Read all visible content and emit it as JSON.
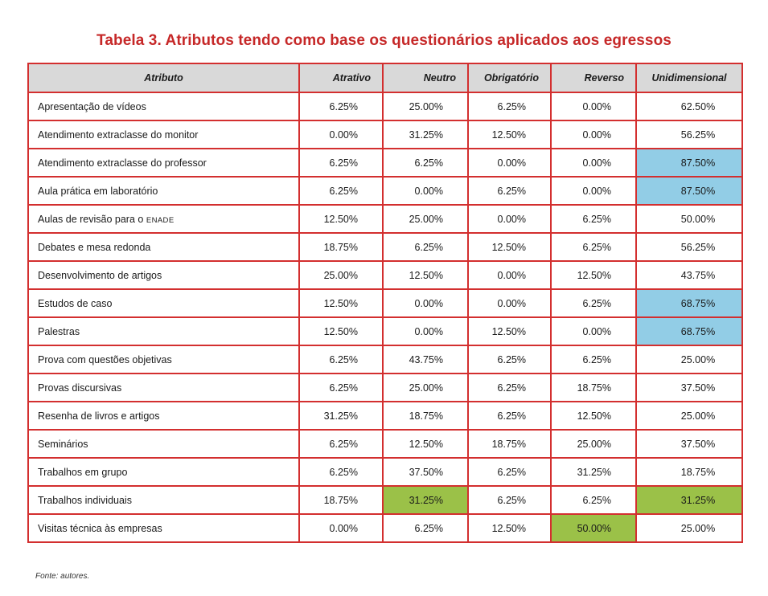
{
  "title": "Tabela 3. Atributos tendo como base os questionários aplicados aos egressos",
  "headers": [
    "Atributo",
    "Atrativo",
    "Neutro",
    "Obrigatório",
    "Reverso",
    "Unidimensional"
  ],
  "highlight_colors": {
    "blue": "#92cde6",
    "green": "#9bc148",
    "border": "#d32f2f",
    "title": "#c62828"
  },
  "rows": [
    {
      "attr": "Apresentação de vídeos",
      "values": [
        "6.25%",
        "25.00%",
        "6.25%",
        "0.00%",
        "62.50%"
      ],
      "hl": [
        "",
        "",
        "",
        "",
        ""
      ]
    },
    {
      "attr": "Atendimento extraclasse do monitor",
      "values": [
        "0.00%",
        "31.25%",
        "12.50%",
        "0.00%",
        "56.25%"
      ],
      "hl": [
        "",
        "",
        "",
        "",
        ""
      ]
    },
    {
      "attr": "Atendimento extraclasse do professor",
      "values": [
        "6.25%",
        "6.25%",
        "0.00%",
        "0.00%",
        "87.50%"
      ],
      "hl": [
        "",
        "",
        "",
        "",
        "blue"
      ]
    },
    {
      "attr": "Aula prática em laboratório",
      "values": [
        "6.25%",
        "0.00%",
        "6.25%",
        "0.00%",
        "87.50%"
      ],
      "hl": [
        "",
        "",
        "",
        "",
        "blue"
      ]
    },
    {
      "attr": "Aulas de revisão para o",
      "attr_sc": "ENADE",
      "values": [
        "12.50%",
        "25.00%",
        "0.00%",
        "6.25%",
        "50.00%"
      ],
      "hl": [
        "",
        "",
        "",
        "",
        ""
      ]
    },
    {
      "attr": "Debates e mesa redonda",
      "values": [
        "18.75%",
        "6.25%",
        "12.50%",
        "6.25%",
        "56.25%"
      ],
      "hl": [
        "",
        "",
        "",
        "",
        ""
      ]
    },
    {
      "attr": "Desenvolvimento de artigos",
      "values": [
        "25.00%",
        "12.50%",
        "0.00%",
        "12.50%",
        "43.75%"
      ],
      "hl": [
        "",
        "",
        "",
        "",
        ""
      ]
    },
    {
      "attr": "Estudos de caso",
      "values": [
        "12.50%",
        "0.00%",
        "0.00%",
        "6.25%",
        "68.75%"
      ],
      "hl": [
        "",
        "",
        "",
        "",
        "blue"
      ]
    },
    {
      "attr": "Palestras",
      "values": [
        "12.50%",
        "0.00%",
        "12.50%",
        "0.00%",
        "68.75%"
      ],
      "hl": [
        "",
        "",
        "",
        "",
        "blue"
      ]
    },
    {
      "attr": "Prova com questões objetivas",
      "values": [
        "6.25%",
        "43.75%",
        "6.25%",
        "6.25%",
        "25.00%"
      ],
      "hl": [
        "",
        "",
        "",
        "",
        ""
      ]
    },
    {
      "attr": "Provas discursivas",
      "values": [
        "6.25%",
        "25.00%",
        "6.25%",
        "18.75%",
        "37.50%"
      ],
      "hl": [
        "",
        "",
        "",
        "",
        ""
      ]
    },
    {
      "attr": "Resenha de livros e artigos",
      "values": [
        "31.25%",
        "18.75%",
        "6.25%",
        "12.50%",
        "25.00%"
      ],
      "hl": [
        "",
        "",
        "",
        "",
        ""
      ]
    },
    {
      "attr": "Seminários",
      "values": [
        "6.25%",
        "12.50%",
        "18.75%",
        "25.00%",
        "37.50%"
      ],
      "hl": [
        "",
        "",
        "",
        "",
        ""
      ]
    },
    {
      "attr": "Trabalhos em grupo",
      "values": [
        "6.25%",
        "37.50%",
        "6.25%",
        "31.25%",
        "18.75%"
      ],
      "hl": [
        "",
        "",
        "",
        "",
        ""
      ]
    },
    {
      "attr": "Trabalhos individuais",
      "values": [
        "18.75%",
        "31.25%",
        "6.25%",
        "6.25%",
        "31.25%"
      ],
      "hl": [
        "",
        "green",
        "",
        "",
        "green"
      ]
    },
    {
      "attr": "Visitas técnica às empresas",
      "values": [
        "0.00%",
        "6.25%",
        "12.50%",
        "50.00%",
        "25.00%"
      ],
      "hl": [
        "",
        "",
        "",
        "green",
        ""
      ]
    }
  ],
  "footer": "Fonte: autores."
}
